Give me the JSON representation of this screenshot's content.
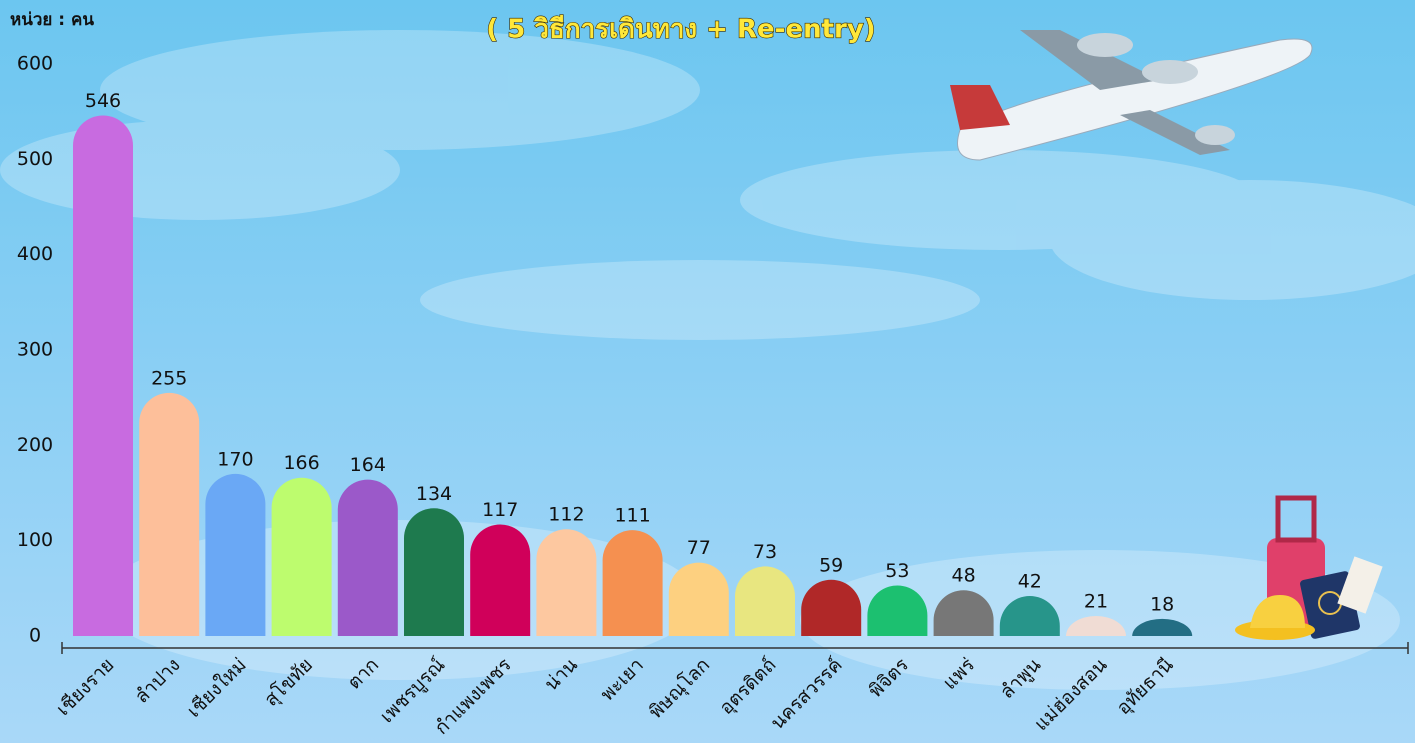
{
  "chart_data": {
    "type": "bar",
    "subtitle": "( 5 วิธีการเดินทาง + Re-entry)",
    "y_axis_label": "หน่วย : คน",
    "categories": [
      "เชียงราย",
      "ลำปาง",
      "เชียงใหม่",
      "สุโขทัย",
      "ตาก",
      "เพชรบูรณ์",
      "กำแพงเพชร",
      "น่าน",
      "พะเยา",
      "พิษณุโลก",
      "อุตรดิตถ์",
      "นครสวรรค์",
      "พิจิตร",
      "แพร่",
      "ลำพูน",
      "แม่ฮ่องสอน",
      "อุทัยธานี"
    ],
    "values": [
      546,
      255,
      170,
      166,
      164,
      134,
      117,
      112,
      111,
      77,
      73,
      59,
      53,
      48,
      42,
      21,
      18
    ],
    "colors": [
      "#c86be0",
      "#fdbf9a",
      "#6aa8f5",
      "#bdfc6e",
      "#9b59c9",
      "#1e7a4e",
      "#d0005a",
      "#fdc8a0",
      "#f59050",
      "#fdd080",
      "#e8e680",
      "#b02828",
      "#1cc070",
      "#777777",
      "#27958a",
      "#f0dcd4",
      "#236e84"
    ],
    "ylim": [
      0,
      600
    ],
    "yticks": [
      0,
      100,
      200,
      300,
      400,
      500,
      600
    ],
    "grid": false
  }
}
